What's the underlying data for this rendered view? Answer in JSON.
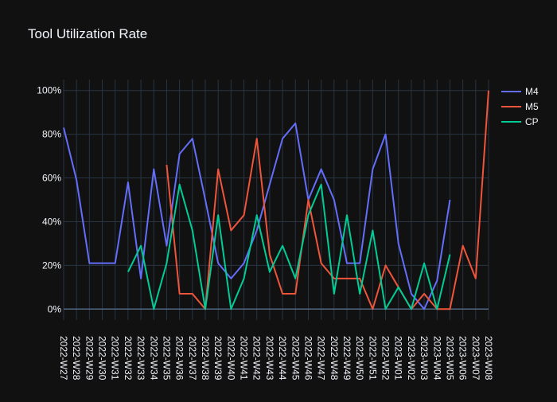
{
  "chart_data": {
    "type": "line",
    "title": "Tool Utilization Rate",
    "xlabel": "",
    "ylabel": "",
    "y_tick_format": "percent",
    "ylim": [
      -0.05,
      1.05
    ],
    "y_ticks": [
      0,
      0.2,
      0.4,
      0.6,
      0.8,
      1.0
    ],
    "grid": true,
    "legend_position": "top-right",
    "x": [
      "2022-W27",
      "2022-W28",
      "2022-W29",
      "2022-W30",
      "2022-W31",
      "2022-W32",
      "2022-W33",
      "2022-W34",
      "2022-W35",
      "2022-W36",
      "2022-W37",
      "2022-W38",
      "2022-W39",
      "2022-W40",
      "2022-W41",
      "2022-W42",
      "2022-W43",
      "2022-W44",
      "2022-W45",
      "2022-W46",
      "2022-W47",
      "2022-W48",
      "2022-W49",
      "2022-W50",
      "2022-W51",
      "2022-W52",
      "2023-W01",
      "2023-W02",
      "2023-W03",
      "2023-W04",
      "2023-W05",
      "2023-W06",
      "2023-W07",
      "2023-W08"
    ],
    "series": [
      {
        "name": "M4",
        "color": "#636efa",
        "values": [
          0.83,
          0.59,
          0.21,
          0.21,
          0.21,
          0.58,
          0.14,
          0.64,
          0.29,
          0.71,
          0.78,
          0.5,
          0.21,
          0.14,
          0.21,
          0.36,
          0.57,
          0.78,
          0.85,
          0.5,
          0.64,
          0.5,
          0.21,
          0.21,
          0.64,
          0.8,
          0.3,
          0.07,
          0.0,
          0.13,
          0.5,
          null,
          null,
          null
        ]
      },
      {
        "name": "M5",
        "color": "#ef553b",
        "values": [
          null,
          null,
          null,
          null,
          null,
          null,
          null,
          null,
          0.66,
          0.07,
          0.07,
          0.0,
          0.64,
          0.36,
          0.43,
          0.78,
          0.25,
          0.07,
          0.07,
          0.5,
          0.21,
          0.14,
          0.14,
          0.14,
          0.0,
          0.2,
          0.1,
          0.0,
          0.07,
          0.0,
          0.0,
          0.29,
          0.14,
          1.0
        ]
      },
      {
        "name": "CP",
        "color": "#00cc96",
        "values": [
          null,
          null,
          null,
          null,
          null,
          0.17,
          0.29,
          0.0,
          0.21,
          0.57,
          0.36,
          0.0,
          0.43,
          0.0,
          0.14,
          0.43,
          0.17,
          0.29,
          0.14,
          0.43,
          0.57,
          0.07,
          0.43,
          0.07,
          0.36,
          0.0,
          0.1,
          0.0,
          0.21,
          0.0,
          0.25,
          null,
          null,
          null
        ]
      }
    ]
  }
}
